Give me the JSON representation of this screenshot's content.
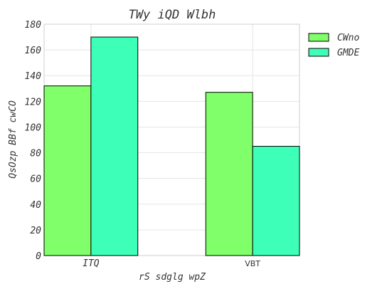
{
  "chart_data": {
    "type": "bar",
    "title": "TWy  iQD Wlbh",
    "xlabel": "rS sdglg  wpZ",
    "ylabel": "QsOzp BBf cwCO",
    "categories": [
      "ITQ",
      "VBT"
    ],
    "series": [
      {
        "name": "CWno",
        "values": [
          132,
          127
        ],
        "color": "#80ff6a"
      },
      {
        "name": "GMDE",
        "values": [
          170,
          85
        ],
        "color": "#3dffb8"
      }
    ],
    "ylim": [
      0,
      180
    ],
    "yticks": [
      0,
      20,
      40,
      60,
      80,
      100,
      120,
      140,
      160,
      180
    ],
    "ytick_labels": [
      "0",
      "20",
      "40",
      "60",
      "80",
      "100",
      "120",
      "140",
      "160",
      "180"
    ],
    "grid": true,
    "legend": "top-right-outside"
  }
}
